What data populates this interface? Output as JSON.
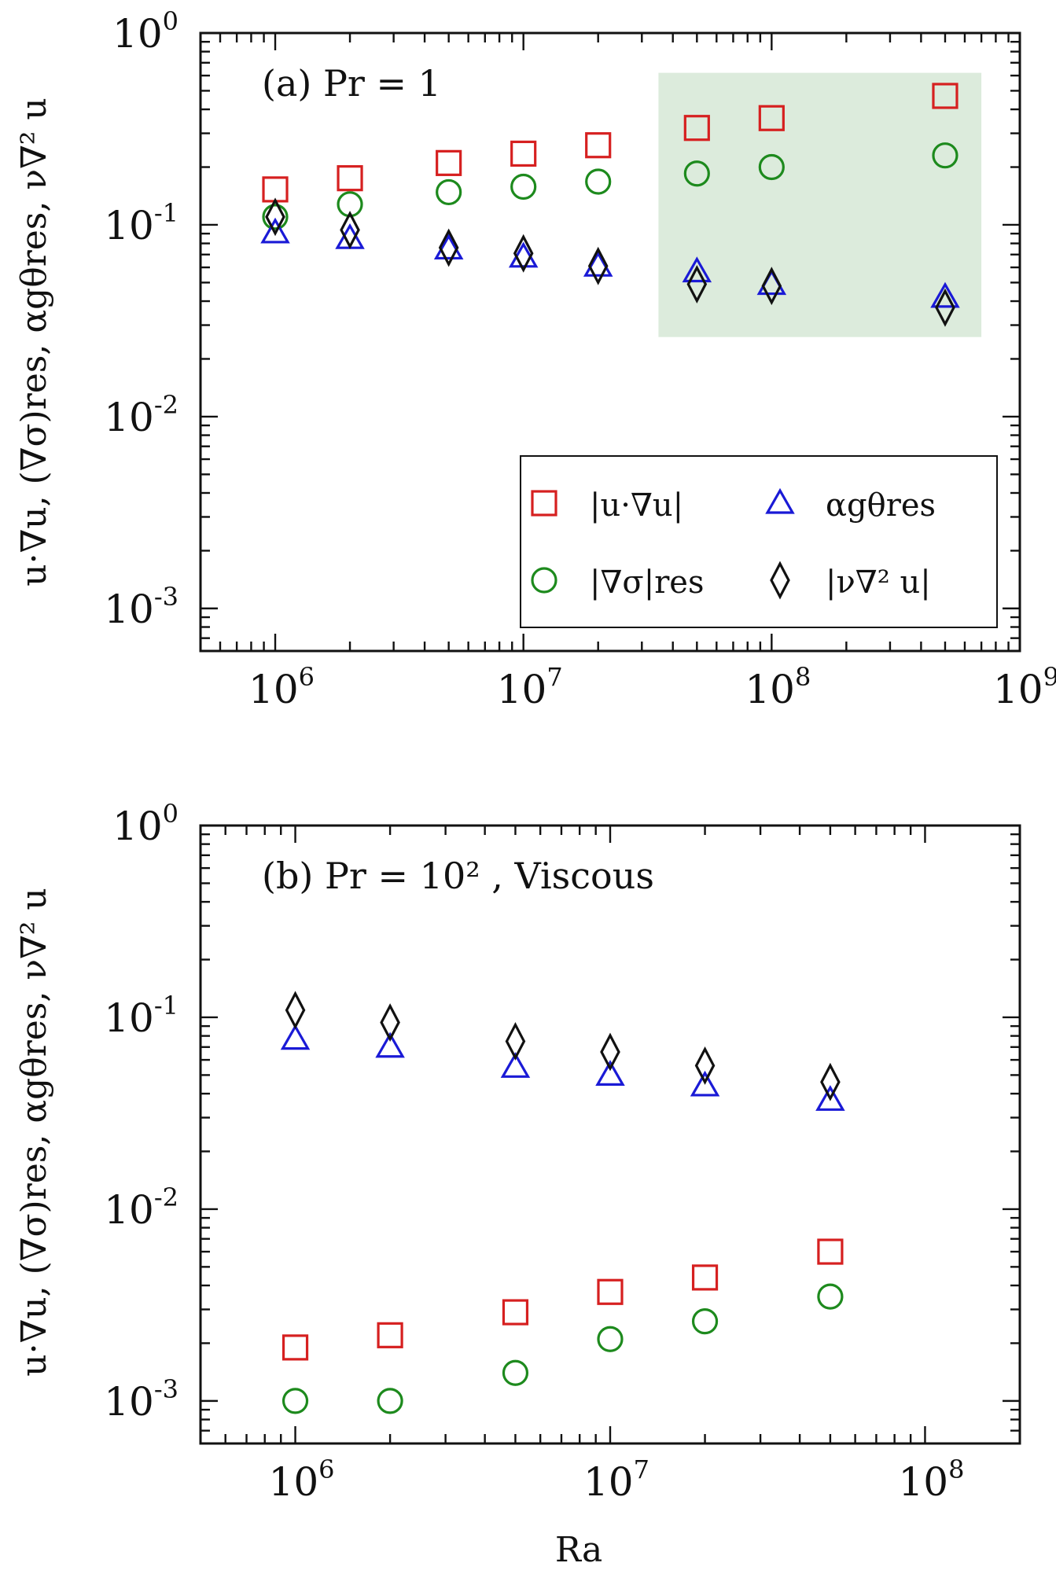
{
  "chart_data": [
    {
      "type": "scatter",
      "panel_label": "(a) Pr = 1",
      "xscale": "log",
      "yscale": "log",
      "xlim": [
        500000,
        1000000000
      ],
      "ylim": [
        0.0006,
        1
      ],
      "xticklabels": [
        "10^6",
        "10^7",
        "10^8",
        "10^9"
      ],
      "yticklabels": [
        "10^0",
        "10^-1",
        "10^-2",
        "10^-3"
      ],
      "ylabel": "u·∇u, (∇σ)res, αgθres, ν∇² u",
      "xlabel": "",
      "shaded_region": {
        "color": "#dcebdc",
        "x": [
          35000000,
          700000000
        ],
        "y": [
          0.026,
          0.62
        ]
      },
      "legend": {
        "placement": "lower-right",
        "entries": [
          "|u·∇u|",
          "αgθres",
          "|∇σ|res",
          "|ν∇² u|"
        ]
      },
      "series": [
        {
          "name": "|u·∇u|",
          "marker": "square",
          "color": "#d62020",
          "x": [
            1000000,
            2000000,
            5000000,
            10000000,
            20000000,
            50000000,
            100000000,
            500000000
          ],
          "y": [
            0.153,
            0.175,
            0.21,
            0.235,
            0.26,
            0.32,
            0.36,
            0.47
          ]
        },
        {
          "name": "|∇σ|res",
          "marker": "circle",
          "color": "#1d8a1d",
          "x": [
            1000000,
            2000000,
            5000000,
            10000000,
            20000000,
            50000000,
            100000000,
            500000000
          ],
          "y": [
            0.11,
            0.128,
            0.148,
            0.158,
            0.168,
            0.185,
            0.2,
            0.23
          ]
        },
        {
          "name": "αgθres",
          "marker": "triangle",
          "color": "#1a1ad6",
          "x": [
            1000000,
            2000000,
            5000000,
            10000000,
            20000000,
            50000000,
            100000000,
            500000000
          ],
          "y": [
            0.091,
            0.085,
            0.075,
            0.068,
            0.061,
            0.057,
            0.049,
            0.042
          ]
        },
        {
          "name": "|ν∇² u|",
          "marker": "diamond",
          "color": "#111111",
          "x": [
            1000000,
            2000000,
            5000000,
            10000000,
            20000000,
            50000000,
            100000000,
            500000000
          ],
          "y": [
            0.11,
            0.094,
            0.076,
            0.071,
            0.061,
            0.049,
            0.048,
            0.037
          ]
        }
      ]
    },
    {
      "type": "scatter",
      "panel_label": "(b) Pr = 10² , Viscous",
      "xscale": "log",
      "yscale": "log",
      "xlim": [
        500000,
        200000000
      ],
      "ylim": [
        0.0006,
        1
      ],
      "xticklabels": [
        "10^6",
        "10^7",
        "10^8"
      ],
      "yticklabels": [
        "10^0",
        "10^-1",
        "10^-2",
        "10^-3"
      ],
      "ylabel": "u·∇u, (∇σ)res, αgθres, ν∇² u",
      "xlabel": "Ra",
      "series": [
        {
          "name": "|u·∇u|",
          "marker": "square",
          "color": "#d62020",
          "x": [
            1000000,
            2000000,
            5000000,
            10000000,
            20000000,
            50000000
          ],
          "y": [
            0.0019,
            0.0022,
            0.0029,
            0.0037,
            0.0044,
            0.006
          ]
        },
        {
          "name": "|∇σ|res",
          "marker": "circle",
          "color": "#1d8a1d",
          "x": [
            1000000,
            2000000,
            5000000,
            10000000,
            20000000,
            50000000
          ],
          "y": [
            0.001,
            0.001,
            0.0014,
            0.0021,
            0.0026,
            0.0035
          ]
        },
        {
          "name": "αgθres",
          "marker": "triangle",
          "color": "#1a1ad6",
          "x": [
            1000000,
            2000000,
            5000000,
            10000000,
            20000000,
            50000000
          ],
          "y": [
            0.077,
            0.07,
            0.055,
            0.05,
            0.044,
            0.037
          ]
        },
        {
          "name": "|ν∇² u|",
          "marker": "diamond",
          "color": "#111111",
          "x": [
            1000000,
            2000000,
            5000000,
            10000000,
            20000000,
            50000000
          ],
          "y": [
            0.109,
            0.094,
            0.075,
            0.066,
            0.056,
            0.046
          ]
        }
      ]
    }
  ]
}
